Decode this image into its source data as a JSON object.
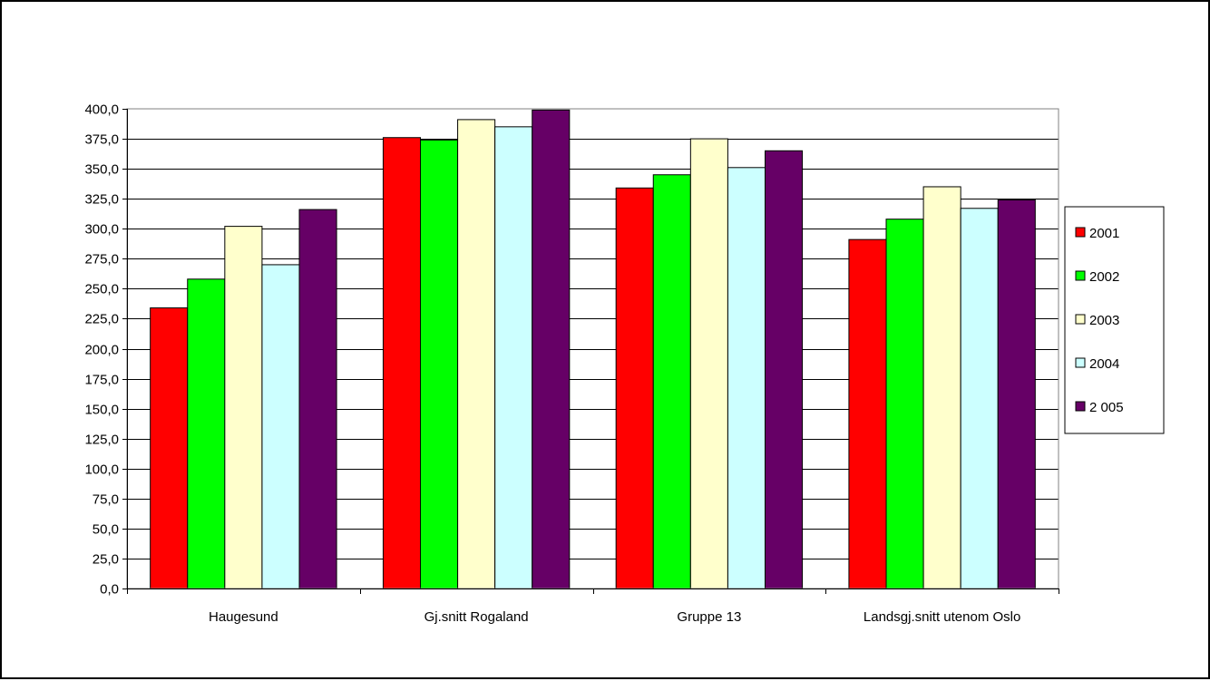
{
  "chart_data": {
    "type": "bar",
    "title": "",
    "xlabel": "",
    "ylabel": "",
    "categories": [
      "Haugesund",
      "Gj.snitt Rogaland",
      "Gruppe 13",
      "Landsgj.snitt utenom Oslo"
    ],
    "series": [
      {
        "name": "2001",
        "color": "#ff0000",
        "values": [
          234,
          376,
          334,
          291
        ]
      },
      {
        "name": "2002",
        "color": "#00ff00",
        "values": [
          258,
          374,
          345,
          308
        ]
      },
      {
        "name": "2003",
        "color": "#ffffcc",
        "values": [
          302,
          391,
          375,
          335
        ]
      },
      {
        "name": "2004",
        "color": "#ccffff",
        "values": [
          270,
          385,
          351,
          317
        ]
      },
      {
        "name": "2 005",
        "color": "#660066",
        "values": [
          316,
          399,
          365,
          324
        ]
      }
    ],
    "ylim": [
      0,
      400
    ],
    "ytick_step": 25,
    "ytick_labels": [
      "0,0",
      "25,0",
      "50,0",
      "75,0",
      "100,0",
      "125,0",
      "150,0",
      "175,0",
      "200,0",
      "225,0",
      "250,0",
      "275,0",
      "300,0",
      "325,0",
      "350,0",
      "375,0",
      "400,0"
    ],
    "grid": true,
    "legend_position": "right"
  }
}
